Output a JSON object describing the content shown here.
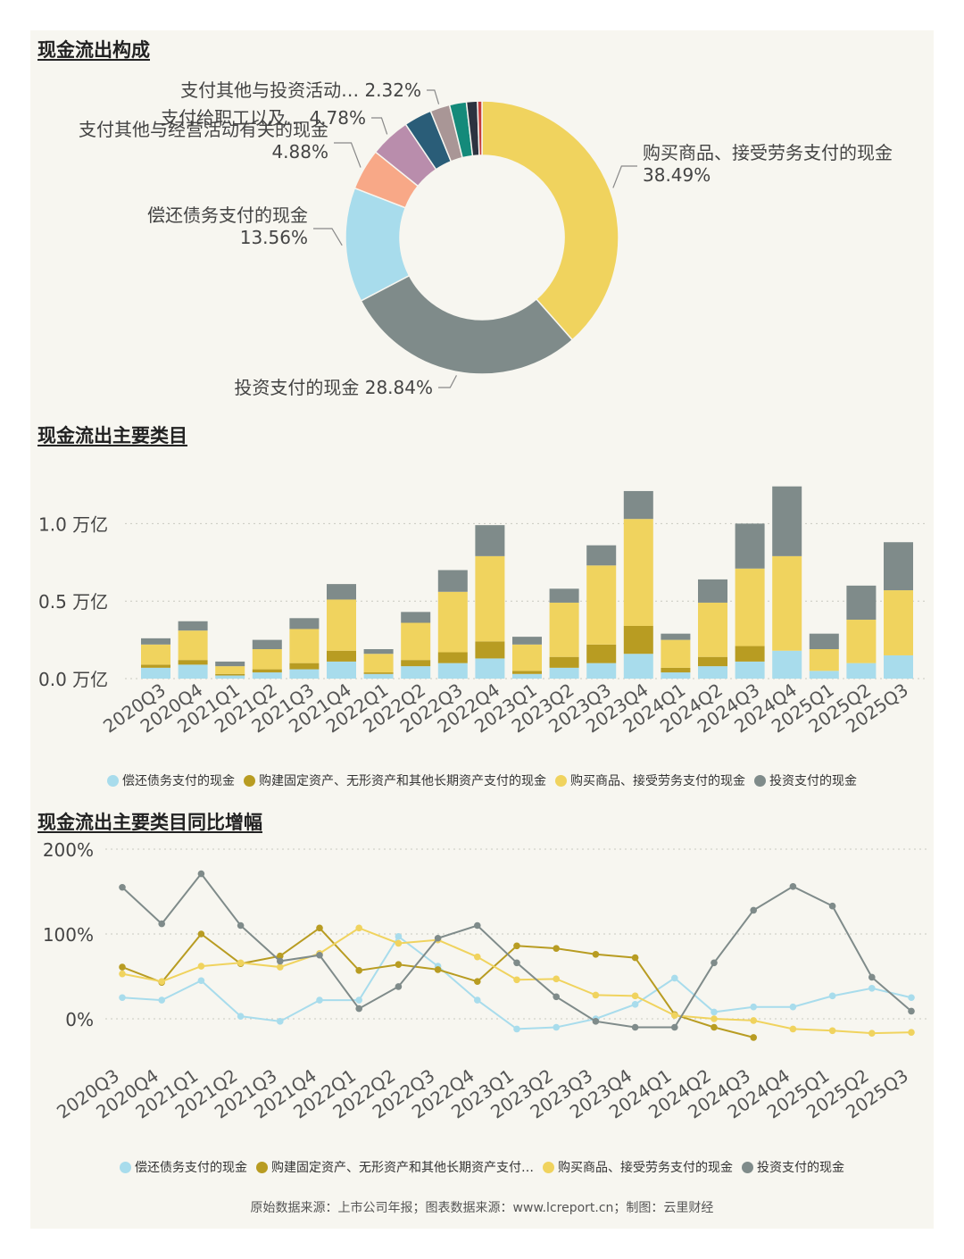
{
  "donut": {
    "title": "现金流出构成",
    "chart_data": {
      "type": "pie",
      "slices": [
        {
          "label": "购买商品、接受劳务支付的现金",
          "value": 38.49,
          "pct_text": "38.49%",
          "color": "#f0d35e"
        },
        {
          "label": "投资支付的现金",
          "value": 28.84,
          "pct_text": "28.84%",
          "color": "#7f8b8a"
        },
        {
          "label": "偿还债务支付的现金",
          "value": 13.56,
          "pct_text": "13.56%",
          "color": "#a8dcec"
        },
        {
          "label": "支付其他与经营活动有关的现金",
          "value": 4.88,
          "pct_text": "4.88%",
          "color": "#f8a887"
        },
        {
          "label": "支付给职工以及…",
          "value": 4.78,
          "pct_text": "4.78%",
          "color": "#b98dac"
        },
        {
          "label": "",
          "value": 3.3,
          "pct_text": "",
          "color": "#2a5d78"
        },
        {
          "label": "支付其他与投资活动…",
          "value": 2.32,
          "pct_text": "2.32%",
          "color": "#a99696"
        },
        {
          "label": "",
          "value": 2.0,
          "pct_text": "",
          "color": "#148a7a"
        },
        {
          "label": "",
          "value": 1.3,
          "pct_text": "",
          "color": "#2c3340"
        },
        {
          "label": "",
          "value": 0.53,
          "pct_text": "",
          "color": "#c33c3c"
        }
      ]
    }
  },
  "bars": {
    "title": "现金流出主要类目",
    "chart_data": {
      "type": "bar",
      "stacked": true,
      "categories": [
        "2020Q3",
        "2020Q4",
        "2021Q1",
        "2021Q2",
        "2021Q3",
        "2021Q4",
        "2022Q1",
        "2022Q2",
        "2022Q3",
        "2022Q4",
        "2023Q1",
        "2023Q2",
        "2023Q3",
        "2023Q4",
        "2024Q1",
        "2024Q2",
        "2024Q3",
        "2024Q4",
        "2025Q1",
        "2025Q2",
        "2025Q3"
      ],
      "series": [
        {
          "name": "偿还债务支付的现金",
          "color": "#a8dcec",
          "values": [
            0.07,
            0.09,
            0.02,
            0.04,
            0.06,
            0.11,
            0.03,
            0.08,
            0.1,
            0.13,
            0.03,
            0.07,
            0.1,
            0.16,
            0.04,
            0.08,
            0.11,
            0.18,
            0.05,
            0.1,
            0.15
          ]
        },
        {
          "name": "购建固定资产、无形资产和其他长期资产支付的现金",
          "color": "#b89c22",
          "values": [
            0.02,
            0.03,
            0.01,
            0.02,
            0.04,
            0.07,
            0.01,
            0.04,
            0.07,
            0.11,
            0.02,
            0.07,
            0.12,
            0.18,
            0.03,
            0.06,
            0.1,
            0.0,
            0.0,
            0.0,
            0.0
          ]
        },
        {
          "name": "购买商品、接受劳务支付的现金",
          "color": "#f0d35e",
          "values": [
            0.13,
            0.19,
            0.05,
            0.13,
            0.22,
            0.33,
            0.12,
            0.24,
            0.39,
            0.55,
            0.17,
            0.35,
            0.51,
            0.69,
            0.18,
            0.35,
            0.5,
            0.61,
            0.14,
            0.28,
            0.42
          ]
        },
        {
          "name": "投资支付的现金",
          "color": "#7f8b8a",
          "values": [
            0.04,
            0.06,
            0.03,
            0.06,
            0.07,
            0.1,
            0.03,
            0.07,
            0.14,
            0.2,
            0.05,
            0.09,
            0.13,
            0.18,
            0.04,
            0.15,
            0.29,
            0.45,
            0.1,
            0.22,
            0.31
          ]
        }
      ],
      "ylim": [
        0,
        1.25
      ],
      "ytick_labels": [
        "0.0 万亿",
        "0.5 万亿",
        "1.0 万亿"
      ],
      "ytick_values": [
        0,
        0.5,
        1.0
      ]
    },
    "legend": [
      "偿还债务支付的现金",
      "购建固定资产、无形资产和其他长期资产支付的现金",
      "购买商品、接受劳务支付的现金",
      "投资支付的现金"
    ]
  },
  "lines": {
    "title": "现金流出主要类目同比增幅",
    "chart_data": {
      "type": "line",
      "categories": [
        "2020Q3",
        "2020Q4",
        "2021Q1",
        "2021Q2",
        "2021Q3",
        "2021Q4",
        "2022Q1",
        "2022Q2",
        "2022Q3",
        "2022Q4",
        "2023Q1",
        "2023Q2",
        "2023Q3",
        "2023Q4",
        "2024Q1",
        "2024Q2",
        "2024Q3",
        "2024Q4",
        "2025Q1",
        "2025Q2",
        "2025Q3"
      ],
      "series": [
        {
          "name": "偿还债务支付的现金",
          "color": "#a8dcec",
          "values": [
            25,
            22,
            45,
            3,
            -3,
            22,
            22,
            97,
            62,
            22,
            -12,
            -10,
            0,
            17,
            48,
            8,
            14,
            14,
            27,
            36,
            25
          ]
        },
        {
          "name": "购建固定资产、无形资产和其他长期资产支付…",
          "color": "#b89c22",
          "values": [
            61,
            43,
            100,
            65,
            74,
            107,
            57,
            64,
            58,
            44,
            86,
            83,
            76,
            72,
            5,
            -10,
            -22,
            null,
            null,
            null,
            null
          ]
        },
        {
          "name": "购买商品、接受劳务支付的现金",
          "color": "#f0d35e",
          "values": [
            53,
            44,
            62,
            66,
            61,
            77,
            107,
            89,
            93,
            73,
            46,
            47,
            28,
            27,
            4,
            0,
            -2,
            -12,
            -14,
            -17,
            -16
          ]
        },
        {
          "name": "投资支付的现金",
          "color": "#7f8b8a",
          "values": [
            155,
            112,
            171,
            110,
            68,
            75,
            12,
            38,
            95,
            110,
            66,
            26,
            -3,
            -10,
            -10,
            66,
            128,
            156,
            133,
            49,
            9
          ]
        }
      ],
      "ylim": [
        -35,
        210
      ],
      "ytick_labels": [
        "0%",
        "100%",
        "200%"
      ],
      "ytick_values": [
        0,
        100,
        200
      ]
    },
    "legend": [
      "偿还债务支付的现金",
      "购建固定资产、无形资产和其他长期资产支付…",
      "购买商品、接受劳务支付的现金",
      "投资支付的现金"
    ]
  },
  "footer": "原始数据来源：上市公司年报；图表数据来源：www.lcreport.cn；制图：云里财经"
}
